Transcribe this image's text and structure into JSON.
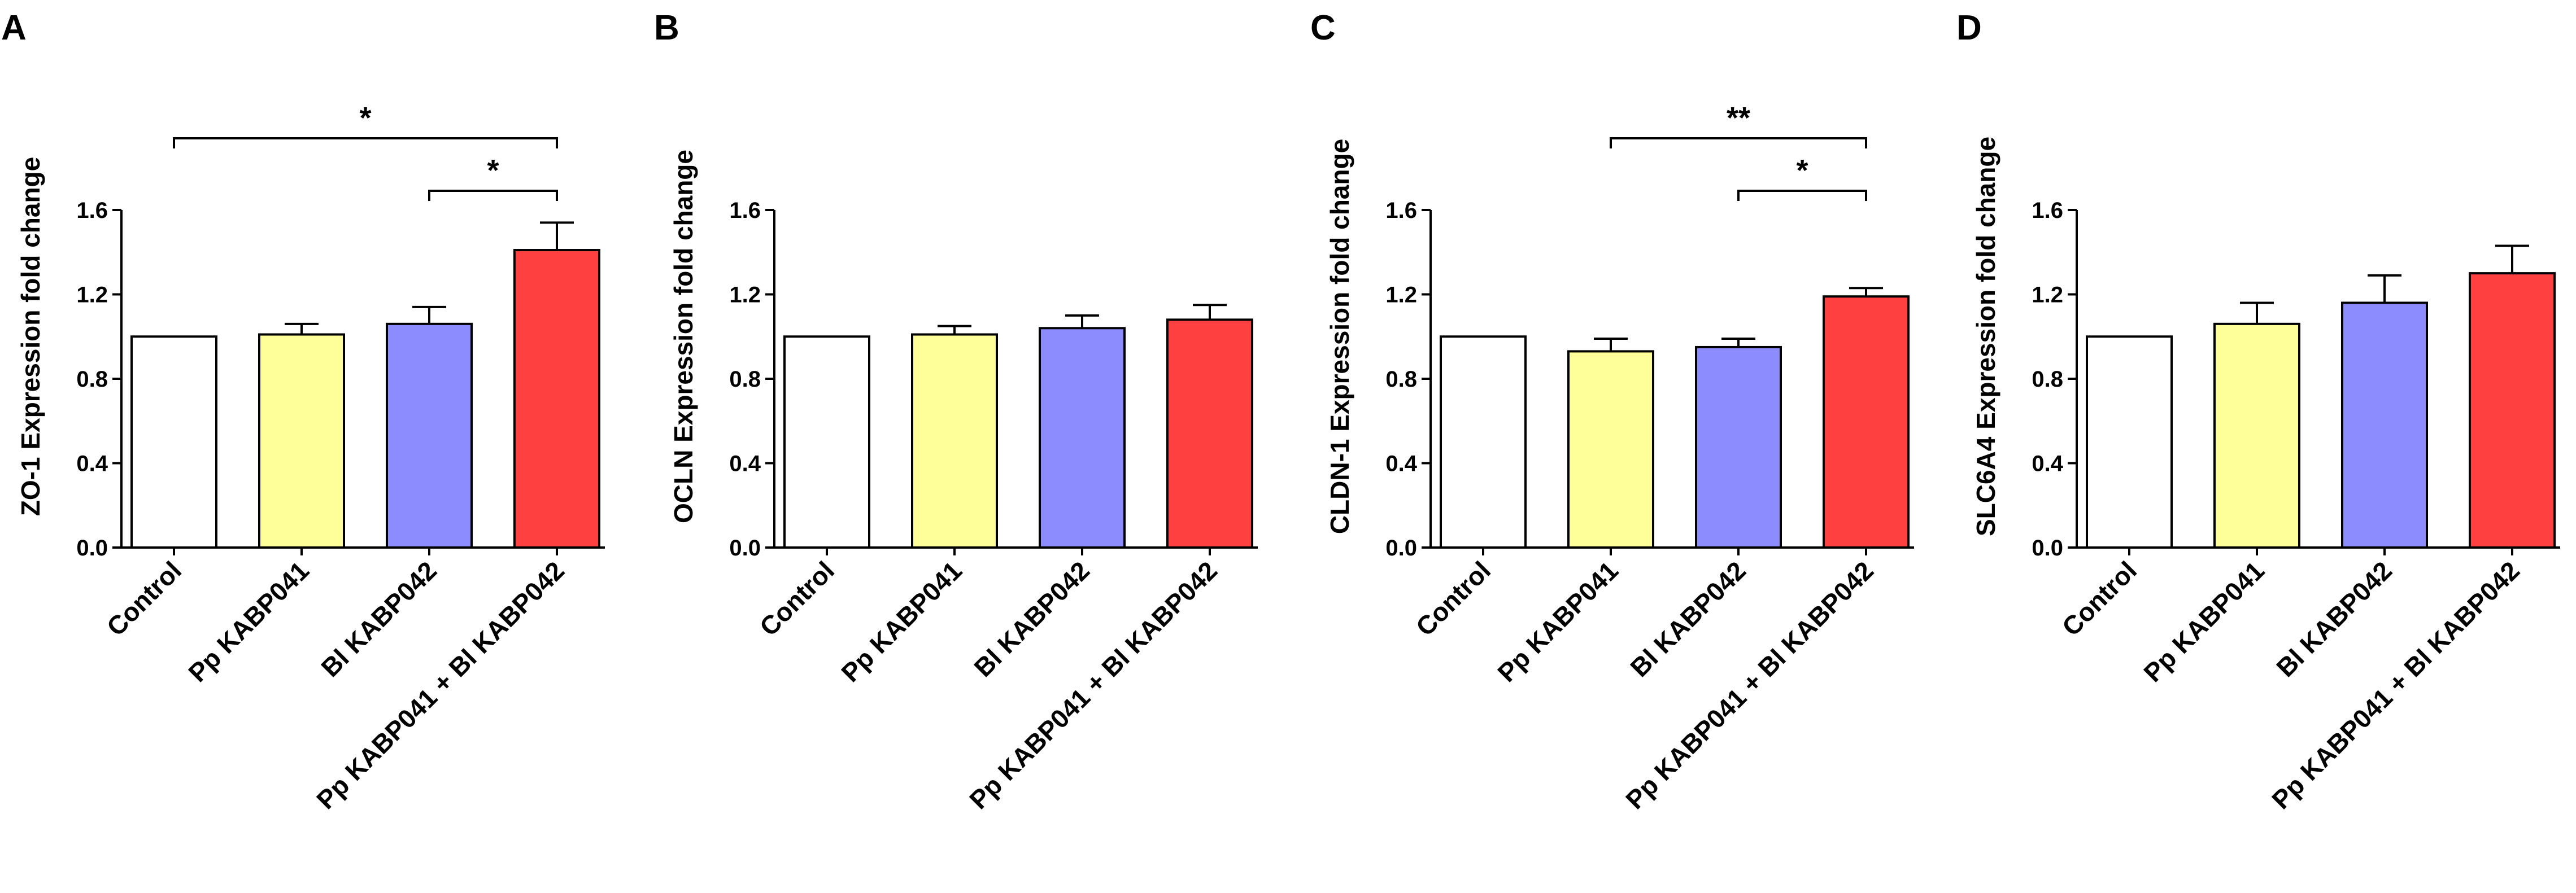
{
  "chart_data": [
    {
      "panel": "A",
      "type": "bar",
      "ylabel": "ZO-1 Expression fold change",
      "ylim": [
        0,
        1.6
      ],
      "yticks": [
        "0.0",
        "0.4",
        "0.8",
        "1.2",
        "1.6"
      ],
      "categories": [
        "Control",
        "Pp KABP041",
        "Bl KABP042",
        "Pp KABP041 + Bl KABP042"
      ],
      "values": [
        1.0,
        1.01,
        1.06,
        1.41
      ],
      "errors": [
        0.0,
        0.05,
        0.08,
        0.13
      ],
      "significance": [
        {
          "from": 0,
          "to": 3,
          "label": "*"
        },
        {
          "from": 2,
          "to": 3,
          "label": "*"
        }
      ]
    },
    {
      "panel": "B",
      "type": "bar",
      "ylabel": "OCLN Expression fold change",
      "ylim": [
        0,
        1.6
      ],
      "yticks": [
        "0.0",
        "0.4",
        "0.8",
        "1.2",
        "1.6"
      ],
      "categories": [
        "Control",
        "Pp KABP041",
        "Bl KABP042",
        "Pp KABP041 + Bl KABP042"
      ],
      "values": [
        1.0,
        1.01,
        1.04,
        1.08
      ],
      "errors": [
        0.0,
        0.04,
        0.06,
        0.07
      ],
      "significance": []
    },
    {
      "panel": "C",
      "type": "bar",
      "ylabel": "CLDN-1 Expression fold change",
      "ylim": [
        0,
        1.6
      ],
      "yticks": [
        "0.0",
        "0.4",
        "0.8",
        "1.2",
        "1.6"
      ],
      "categories": [
        "Control",
        "Pp KABP041",
        "Bl KABP042",
        "Pp KABP041 + Bl KABP042"
      ],
      "values": [
        1.0,
        0.93,
        0.95,
        1.19
      ],
      "errors": [
        0.0,
        0.06,
        0.04,
        0.04
      ],
      "significance": [
        {
          "from": 1,
          "to": 3,
          "label": "**"
        },
        {
          "from": 2,
          "to": 3,
          "label": "*"
        }
      ]
    },
    {
      "panel": "D",
      "type": "bar",
      "ylabel": "SLC6A4 Expression fold change",
      "ylim": [
        0,
        1.6
      ],
      "yticks": [
        "0.0",
        "0.4",
        "0.8",
        "1.2",
        "1.6"
      ],
      "categories": [
        "Control",
        "Pp KABP041",
        "Bl KABP042",
        "Pp KABP041 + Bl KABP042"
      ],
      "values": [
        1.0,
        1.06,
        1.16,
        1.3
      ],
      "errors": [
        0.0,
        0.1,
        0.13,
        0.13
      ],
      "significance": []
    }
  ],
  "colors": {
    "bars": [
      "#ffffff",
      "#ffff99",
      "#8c8cff",
      "#ff4040"
    ],
    "stroke": "#000000"
  }
}
